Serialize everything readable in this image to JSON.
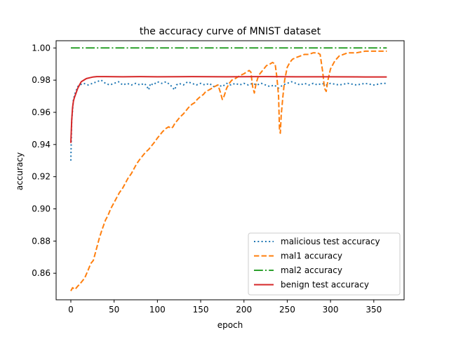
{
  "chart_data": {
    "type": "line",
    "title": "the accuracy curve of MNIST dataset",
    "xlabel": "epoch",
    "ylabel": "accuracy",
    "xlim": [
      -17,
      385
    ],
    "ylim": [
      0.8435,
      1.0045
    ],
    "x_ticks": [
      0,
      50,
      100,
      150,
      200,
      250,
      300,
      350
    ],
    "y_ticks": [
      0.86,
      0.88,
      0.9,
      0.92,
      0.94,
      0.96,
      0.98,
      1.0
    ],
    "x_tick_labels": [
      "0",
      "50",
      "100",
      "150",
      "200",
      "250",
      "300",
      "350"
    ],
    "y_tick_labels": [
      "0.86",
      "0.88",
      "0.90",
      "0.92",
      "0.94",
      "0.96",
      "0.98",
      "1.00"
    ],
    "grid": false,
    "legend_position": "lower-right",
    "series": [
      {
        "name": "malicious test accuracy",
        "color": "#1f77b4",
        "style": "dotted",
        "points": [
          [
            0,
            0.93
          ],
          [
            1,
            0.955
          ],
          [
            3,
            0.968
          ],
          [
            5,
            0.972
          ],
          [
            8,
            0.976
          ],
          [
            10,
            0.977
          ],
          [
            15,
            0.978
          ],
          [
            20,
            0.977
          ],
          [
            25,
            0.978
          ],
          [
            30,
            0.979
          ],
          [
            35,
            0.98
          ],
          [
            40,
            0.978
          ],
          [
            45,
            0.977
          ],
          [
            50,
            0.978
          ],
          [
            55,
            0.979
          ],
          [
            60,
            0.977
          ],
          [
            65,
            0.978
          ],
          [
            70,
            0.977
          ],
          [
            75,
            0.978
          ],
          [
            80,
            0.977
          ],
          [
            85,
            0.978
          ],
          [
            88,
            0.976
          ],
          [
            90,
            0.974
          ],
          [
            92,
            0.978
          ],
          [
            95,
            0.977
          ],
          [
            100,
            0.979
          ],
          [
            105,
            0.978
          ],
          [
            110,
            0.979
          ],
          [
            115,
            0.977
          ],
          [
            118,
            0.975
          ],
          [
            120,
            0.974
          ],
          [
            122,
            0.977
          ],
          [
            125,
            0.978
          ],
          [
            130,
            0.977
          ],
          [
            135,
            0.979
          ],
          [
            140,
            0.978
          ],
          [
            145,
            0.977
          ],
          [
            150,
            0.978
          ],
          [
            155,
            0.977
          ],
          [
            160,
            0.978
          ],
          [
            165,
            0.976
          ],
          [
            170,
            0.977
          ],
          [
            175,
            0.976
          ],
          [
            180,
            0.978
          ],
          [
            185,
            0.977
          ],
          [
            190,
            0.978
          ],
          [
            195,
            0.977
          ],
          [
            200,
            0.978
          ],
          [
            205,
            0.977
          ],
          [
            210,
            0.978
          ],
          [
            215,
            0.977
          ],
          [
            220,
            0.978
          ],
          [
            225,
            0.977
          ],
          [
            230,
            0.976
          ],
          [
            235,
            0.977
          ],
          [
            240,
            0.975
          ],
          [
            245,
            0.977
          ],
          [
            250,
            0.978
          ],
          [
            255,
            0.979
          ],
          [
            260,
            0.978
          ],
          [
            265,
            0.977
          ],
          [
            270,
            0.978
          ],
          [
            275,
            0.977
          ],
          [
            280,
            0.978
          ],
          [
            285,
            0.977
          ],
          [
            290,
            0.978
          ],
          [
            295,
            0.977
          ],
          [
            300,
            0.978
          ],
          [
            310,
            0.977
          ],
          [
            320,
            0.978
          ],
          [
            330,
            0.977
          ],
          [
            340,
            0.978
          ],
          [
            350,
            0.977
          ],
          [
            360,
            0.978
          ],
          [
            365,
            0.978
          ]
        ]
      },
      {
        "name": "mal1 accuracy",
        "color": "#ff7f0e",
        "style": "dashed",
        "points": [
          [
            0,
            0.849
          ],
          [
            2,
            0.851
          ],
          [
            5,
            0.85
          ],
          [
            8,
            0.852
          ],
          [
            10,
            0.853
          ],
          [
            13,
            0.855
          ],
          [
            16,
            0.857
          ],
          [
            20,
            0.862
          ],
          [
            23,
            0.866
          ],
          [
            26,
            0.868
          ],
          [
            30,
            0.876
          ],
          [
            33,
            0.882
          ],
          [
            36,
            0.887
          ],
          [
            40,
            0.893
          ],
          [
            43,
            0.896
          ],
          [
            46,
            0.9
          ],
          [
            50,
            0.904
          ],
          [
            53,
            0.907
          ],
          [
            56,
            0.91
          ],
          [
            60,
            0.913
          ],
          [
            63,
            0.916
          ],
          [
            66,
            0.919
          ],
          [
            70,
            0.922
          ],
          [
            73,
            0.925
          ],
          [
            76,
            0.928
          ],
          [
            80,
            0.931
          ],
          [
            83,
            0.933
          ],
          [
            86,
            0.935
          ],
          [
            90,
            0.937
          ],
          [
            93,
            0.939
          ],
          [
            96,
            0.941
          ],
          [
            100,
            0.944
          ],
          [
            103,
            0.946
          ],
          [
            106,
            0.948
          ],
          [
            110,
            0.95
          ],
          [
            113,
            0.951
          ],
          [
            116,
            0.95
          ],
          [
            118,
            0.951
          ],
          [
            120,
            0.953
          ],
          [
            123,
            0.955
          ],
          [
            126,
            0.957
          ],
          [
            130,
            0.959
          ],
          [
            133,
            0.961
          ],
          [
            136,
            0.963
          ],
          [
            140,
            0.965
          ],
          [
            143,
            0.966
          ],
          [
            146,
            0.968
          ],
          [
            150,
            0.97
          ],
          [
            153,
            0.971
          ],
          [
            156,
            0.973
          ],
          [
            160,
            0.974
          ],
          [
            163,
            0.975
          ],
          [
            166,
            0.976
          ],
          [
            170,
            0.977
          ],
          [
            173,
            0.972
          ],
          [
            175,
            0.968
          ],
          [
            177,
            0.97
          ],
          [
            180,
            0.975
          ],
          [
            183,
            0.978
          ],
          [
            186,
            0.98
          ],
          [
            190,
            0.981
          ],
          [
            193,
            0.982
          ],
          [
            196,
            0.983
          ],
          [
            200,
            0.984
          ],
          [
            203,
            0.985
          ],
          [
            206,
            0.986
          ],
          [
            208,
            0.985
          ],
          [
            210,
            0.976
          ],
          [
            212,
            0.972
          ],
          [
            214,
            0.978
          ],
          [
            217,
            0.983
          ],
          [
            220,
            0.985
          ],
          [
            223,
            0.987
          ],
          [
            226,
            0.989
          ],
          [
            230,
            0.99
          ],
          [
            233,
            0.991
          ],
          [
            236,
            0.99
          ],
          [
            238,
            0.982
          ],
          [
            240,
            0.97
          ],
          [
            241,
            0.95
          ],
          [
            242,
            0.947
          ],
          [
            243,
            0.958
          ],
          [
            245,
            0.97
          ],
          [
            247,
            0.98
          ],
          [
            250,
            0.988
          ],
          [
            253,
            0.991
          ],
          [
            256,
            0.993
          ],
          [
            260,
            0.994
          ],
          [
            265,
            0.995
          ],
          [
            270,
            0.996
          ],
          [
            275,
            0.996
          ],
          [
            280,
            0.997
          ],
          [
            285,
            0.997
          ],
          [
            288,
            0.996
          ],
          [
            291,
            0.985
          ],
          [
            293,
            0.975
          ],
          [
            295,
            0.973
          ],
          [
            297,
            0.98
          ],
          [
            300,
            0.987
          ],
          [
            305,
            0.992
          ],
          [
            310,
            0.995
          ],
          [
            315,
            0.996
          ],
          [
            320,
            0.997
          ],
          [
            330,
            0.997
          ],
          [
            340,
            0.998
          ],
          [
            350,
            0.998
          ],
          [
            360,
            0.998
          ],
          [
            365,
            0.998
          ]
        ]
      },
      {
        "name": "mal2 accuracy",
        "color": "#2ca02c",
        "style": "dashdot",
        "points": [
          [
            0,
            1.0
          ],
          [
            365,
            1.0
          ]
        ]
      },
      {
        "name": "benign test accuracy",
        "color": "#d62728",
        "style": "solid",
        "points": [
          [
            0,
            0.941
          ],
          [
            1,
            0.955
          ],
          [
            2,
            0.963
          ],
          [
            3,
            0.967
          ],
          [
            4,
            0.969
          ],
          [
            6,
            0.972
          ],
          [
            8,
            0.975
          ],
          [
            10,
            0.977
          ],
          [
            12,
            0.979
          ],
          [
            15,
            0.98
          ],
          [
            18,
            0.981
          ],
          [
            22,
            0.9815
          ],
          [
            26,
            0.982
          ],
          [
            30,
            0.9822
          ],
          [
            40,
            0.9822
          ],
          [
            60,
            0.9821
          ],
          [
            80,
            0.9822
          ],
          [
            100,
            0.9821
          ],
          [
            140,
            0.9822
          ],
          [
            180,
            0.9821
          ],
          [
            220,
            0.9822
          ],
          [
            260,
            0.9821
          ],
          [
            300,
            0.9821
          ],
          [
            340,
            0.982
          ],
          [
            365,
            0.982
          ]
        ]
      }
    ]
  }
}
